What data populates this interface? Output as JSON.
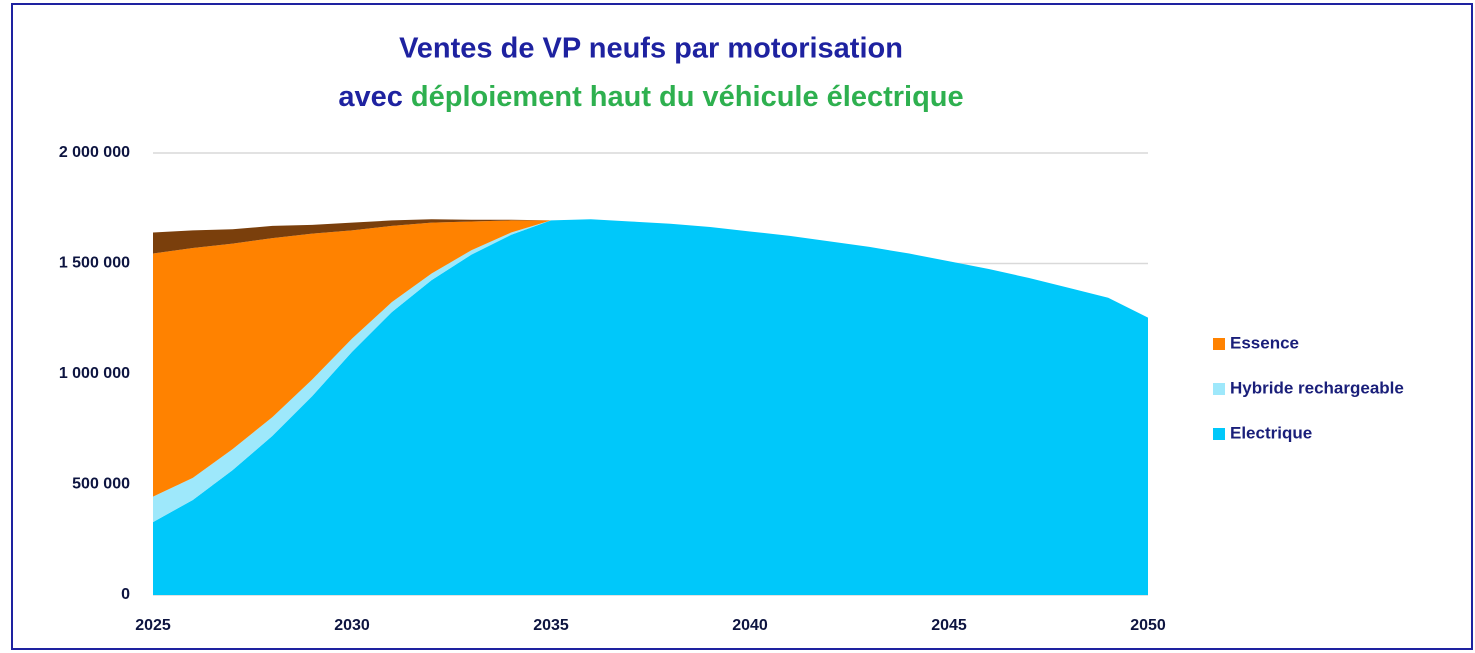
{
  "chart_data": {
    "type": "stacked_area",
    "title": "Ventes de VP neufs par motorisation",
    "subtitle": [
      "avec",
      "déploiement haut du véhicule électrique"
    ],
    "title_colors": [
      "#1e22a0",
      "#2eb04f"
    ],
    "x": [
      2025,
      2026,
      2027,
      2028,
      2029,
      2030,
      2031,
      2032,
      2033,
      2034,
      2035,
      2036,
      2037,
      2038,
      2039,
      2040,
      2041,
      2042,
      2043,
      2044,
      2045,
      2046,
      2047,
      2048,
      2049,
      2050
    ],
    "xlim": [
      2025,
      2050
    ],
    "xticks": [
      2025,
      2030,
      2035,
      2040,
      2045,
      2050
    ],
    "ylim": [
      0,
      2000000
    ],
    "yticks": [
      0,
      {
        "value": 500000,
        "label": "500 000"
      },
      {
        "value": 1000000,
        "label": "1 000 000"
      },
      {
        "value": 1500000,
        "label": "1 500 000"
      },
      {
        "value": 2000000,
        "label": "2 000 000"
      }
    ],
    "grid": true,
    "legend": "right",
    "series": [
      {
        "name": "Electrique",
        "color": "#00c8fa",
        "values": [
          330000,
          430000,
          565000,
          720000,
          900000,
          1100000,
          1280000,
          1425000,
          1540000,
          1630000,
          1695000,
          1700000,
          1690000,
          1680000,
          1665000,
          1645000,
          1625000,
          1600000,
          1575000,
          1545000,
          1510000,
          1475000,
          1435000,
          1390000,
          1345000,
          1255000
        ]
      },
      {
        "name": "Hybride rechargeable",
        "color": "#9ee8fb",
        "values": [
          115000,
          100000,
          95000,
          85000,
          75000,
          60000,
          45000,
          30000,
          20000,
          10000,
          0,
          0,
          0,
          0,
          0,
          0,
          0,
          0,
          0,
          0,
          0,
          0,
          0,
          0,
          0,
          0
        ]
      },
      {
        "name": "Essence",
        "color": "#ff8200",
        "values": [
          1100000,
          1040000,
          930000,
          810000,
          660000,
          490000,
          345000,
          230000,
          130000,
          55000,
          0,
          0,
          0,
          0,
          0,
          0,
          0,
          0,
          0,
          0,
          0,
          0,
          0,
          0,
          0,
          0
        ]
      },
      {
        "color": "#7a3f0c",
        "values": [
          95000,
          80000,
          65000,
          55000,
          40000,
          35000,
          25000,
          15000,
          8000,
          3000,
          0,
          0,
          0,
          0,
          0,
          0,
          0,
          0,
          0,
          0,
          0,
          0,
          0,
          0,
          0,
          0
        ]
      }
    ]
  }
}
